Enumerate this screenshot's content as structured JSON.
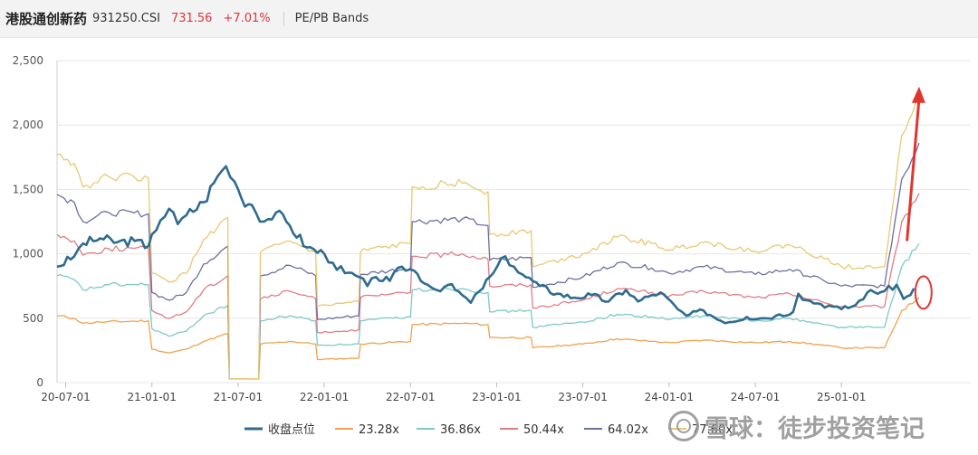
{
  "header": {
    "name": "港股通创新药",
    "code": "931250.CSI",
    "price": "731.56",
    "change": "+7.01%",
    "mode": "PE/PB Bands"
  },
  "watermark": {
    "text": "雪球：徒步投资笔记"
  },
  "chart_data": {
    "type": "line",
    "ylim": [
      0,
      2500
    ],
    "yticks": [
      0,
      500,
      1000,
      1500,
      2000,
      2500
    ],
    "ytick_labels": [
      "0",
      "500",
      "1,000",
      "1,500",
      "2,000",
      "2,500"
    ],
    "xlim": [
      2020.45,
      2025.75
    ],
    "xticks": [
      2020.5,
      2021.0,
      2021.5,
      2022.0,
      2022.5,
      2023.0,
      2023.5,
      2024.0,
      2024.5,
      2025.0
    ],
    "xtick_labels": [
      "20-07-01",
      "21-01-01",
      "21-07-01",
      "22-01-01",
      "22-07-01",
      "23-01-01",
      "23-07-01",
      "24-01-01",
      "24-07-01",
      "25-01-01"
    ],
    "grid": true,
    "legend": "bottom",
    "close_series": {
      "name": "收盘点位",
      "color": "#2e6b8e",
      "points": [
        [
          2020.45,
          900
        ],
        [
          2020.55,
          980
        ],
        [
          2020.6,
          1080
        ],
        [
          2020.7,
          1120
        ],
        [
          2020.8,
          1090
        ],
        [
          2020.9,
          1100
        ],
        [
          2020.98,
          1060
        ],
        [
          2021.0,
          1150
        ],
        [
          2021.05,
          1260
        ],
        [
          2021.1,
          1350
        ],
        [
          2021.15,
          1230
        ],
        [
          2021.2,
          1300
        ],
        [
          2021.3,
          1400
        ],
        [
          2021.38,
          1600
        ],
        [
          2021.43,
          1680
        ],
        [
          2021.48,
          1560
        ],
        [
          2021.52,
          1430
        ],
        [
          2021.58,
          1380
        ],
        [
          2021.65,
          1250
        ],
        [
          2021.72,
          1320
        ],
        [
          2021.8,
          1220
        ],
        [
          2021.9,
          1050
        ],
        [
          2022.0,
          1000
        ],
        [
          2022.05,
          930
        ],
        [
          2022.12,
          850
        ],
        [
          2022.2,
          820
        ],
        [
          2022.25,
          750
        ],
        [
          2022.3,
          820
        ],
        [
          2022.38,
          790
        ],
        [
          2022.45,
          900
        ],
        [
          2022.52,
          870
        ],
        [
          2022.6,
          760
        ],
        [
          2022.65,
          720
        ],
        [
          2022.72,
          760
        ],
        [
          2022.8,
          680
        ],
        [
          2022.85,
          620
        ],
        [
          2022.9,
          710
        ],
        [
          2022.98,
          850
        ],
        [
          2023.05,
          980
        ],
        [
          2023.1,
          900
        ],
        [
          2023.15,
          840
        ],
        [
          2023.25,
          750
        ],
        [
          2023.35,
          690
        ],
        [
          2023.45,
          660
        ],
        [
          2023.55,
          680
        ],
        [
          2023.65,
          630
        ],
        [
          2023.75,
          720
        ],
        [
          2023.82,
          630
        ],
        [
          2023.9,
          680
        ],
        [
          2023.95,
          700
        ],
        [
          2024.05,
          570
        ],
        [
          2024.1,
          520
        ],
        [
          2024.2,
          560
        ],
        [
          2024.3,
          480
        ],
        [
          2024.35,
          470
        ],
        [
          2024.45,
          510
        ],
        [
          2024.55,
          500
        ],
        [
          2024.62,
          520
        ],
        [
          2024.72,
          550
        ],
        [
          2024.75,
          690
        ],
        [
          2024.8,
          640
        ],
        [
          2024.88,
          610
        ],
        [
          2024.95,
          590
        ],
        [
          2025.0,
          570
        ],
        [
          2025.08,
          600
        ],
        [
          2025.15,
          700
        ],
        [
          2025.25,
          710
        ],
        [
          2025.32,
          760
        ],
        [
          2025.36,
          650
        ],
        [
          2025.4,
          680
        ],
        [
          2025.42,
          731.56
        ]
      ]
    },
    "bands": [
      {
        "name": "23.28x",
        "color": "#f0a24e",
        "points": [
          [
            2020.45,
            520
          ],
          [
            2020.55,
            500
          ],
          [
            2020.6,
            460
          ],
          [
            2020.7,
            470
          ],
          [
            2020.98,
            480
          ],
          [
            2021.0,
            260
          ],
          [
            2021.1,
            230
          ],
          [
            2021.2,
            260
          ],
          [
            2021.3,
            320
          ],
          [
            2021.44,
            380
          ],
          [
            2021.45,
            30
          ],
          [
            2021.62,
            30
          ],
          [
            2021.63,
            300
          ],
          [
            2021.8,
            320
          ],
          [
            2021.95,
            300
          ],
          [
            2021.96,
            180
          ],
          [
            2022.2,
            190
          ],
          [
            2022.21,
            300
          ],
          [
            2022.5,
            320
          ],
          [
            2022.51,
            450
          ],
          [
            2022.8,
            460
          ],
          [
            2022.95,
            450
          ],
          [
            2022.96,
            350
          ],
          [
            2023.2,
            350
          ],
          [
            2023.21,
            270
          ],
          [
            2023.5,
            300
          ],
          [
            2023.7,
            340
          ],
          [
            2023.9,
            320
          ],
          [
            2024.0,
            310
          ],
          [
            2024.2,
            330
          ],
          [
            2024.5,
            310
          ],
          [
            2024.7,
            320
          ],
          [
            2024.9,
            290
          ],
          [
            2025.0,
            270
          ],
          [
            2025.25,
            270
          ],
          [
            2025.35,
            560
          ],
          [
            2025.45,
            660
          ]
        ]
      },
      {
        "name": "36.86x",
        "color": "#7ec9c9",
        "points": [
          [
            2020.45,
            830
          ],
          [
            2020.55,
            800
          ],
          [
            2020.6,
            720
          ],
          [
            2020.75,
            760
          ],
          [
            2020.98,
            760
          ],
          [
            2021.0,
            420
          ],
          [
            2021.1,
            360
          ],
          [
            2021.2,
            400
          ],
          [
            2021.3,
            520
          ],
          [
            2021.44,
            600
          ],
          [
            2021.45,
            30
          ],
          [
            2021.62,
            30
          ],
          [
            2021.63,
            480
          ],
          [
            2021.8,
            520
          ],
          [
            2021.95,
            480
          ],
          [
            2021.96,
            290
          ],
          [
            2022.2,
            300
          ],
          [
            2022.21,
            480
          ],
          [
            2022.5,
            510
          ],
          [
            2022.51,
            720
          ],
          [
            2022.8,
            730
          ],
          [
            2022.95,
            700
          ],
          [
            2022.96,
            550
          ],
          [
            2023.2,
            560
          ],
          [
            2023.21,
            430
          ],
          [
            2023.5,
            470
          ],
          [
            2023.7,
            530
          ],
          [
            2023.9,
            510
          ],
          [
            2024.0,
            490
          ],
          [
            2024.2,
            520
          ],
          [
            2024.5,
            480
          ],
          [
            2024.7,
            500
          ],
          [
            2024.9,
            450
          ],
          [
            2025.0,
            430
          ],
          [
            2025.25,
            430
          ],
          [
            2025.35,
            900
          ],
          [
            2025.45,
            1080
          ]
        ]
      },
      {
        "name": "50.44x",
        "color": "#e07d85",
        "points": [
          [
            2020.45,
            1150
          ],
          [
            2020.55,
            1100
          ],
          [
            2020.6,
            990
          ],
          [
            2020.75,
            1040
          ],
          [
            2020.98,
            1040
          ],
          [
            2021.0,
            560
          ],
          [
            2021.1,
            500
          ],
          [
            2021.2,
            550
          ],
          [
            2021.3,
            720
          ],
          [
            2021.44,
            830
          ],
          [
            2021.45,
            30
          ],
          [
            2021.62,
            30
          ],
          [
            2021.63,
            650
          ],
          [
            2021.8,
            710
          ],
          [
            2021.95,
            650
          ],
          [
            2021.96,
            390
          ],
          [
            2022.2,
            410
          ],
          [
            2022.21,
            660
          ],
          [
            2022.5,
            700
          ],
          [
            2022.51,
            980
          ],
          [
            2022.8,
            1000
          ],
          [
            2022.95,
            960
          ],
          [
            2022.96,
            750
          ],
          [
            2023.2,
            760
          ],
          [
            2023.21,
            580
          ],
          [
            2023.5,
            640
          ],
          [
            2023.7,
            730
          ],
          [
            2023.9,
            700
          ],
          [
            2024.0,
            670
          ],
          [
            2024.2,
            710
          ],
          [
            2024.5,
            660
          ],
          [
            2024.7,
            690
          ],
          [
            2024.9,
            620
          ],
          [
            2025.0,
            590
          ],
          [
            2025.25,
            590
          ],
          [
            2025.35,
            1250
          ],
          [
            2025.45,
            1470
          ]
        ]
      },
      {
        "name": "64.02x",
        "color": "#6a6fa0",
        "points": [
          [
            2020.45,
            1460
          ],
          [
            2020.55,
            1400
          ],
          [
            2020.6,
            1250
          ],
          [
            2020.75,
            1320
          ],
          [
            2020.98,
            1310
          ],
          [
            2021.0,
            700
          ],
          [
            2021.1,
            640
          ],
          [
            2021.2,
            700
          ],
          [
            2021.3,
            920
          ],
          [
            2021.44,
            1060
          ],
          [
            2021.45,
            30
          ],
          [
            2021.62,
            30
          ],
          [
            2021.63,
            830
          ],
          [
            2021.8,
            910
          ],
          [
            2021.95,
            830
          ],
          [
            2021.96,
            490
          ],
          [
            2022.2,
            520
          ],
          [
            2022.21,
            840
          ],
          [
            2022.5,
            890
          ],
          [
            2022.51,
            1250
          ],
          [
            2022.8,
            1270
          ],
          [
            2022.95,
            1220
          ],
          [
            2022.96,
            950
          ],
          [
            2023.2,
            970
          ],
          [
            2023.21,
            740
          ],
          [
            2023.5,
            820
          ],
          [
            2023.7,
            930
          ],
          [
            2023.9,
            890
          ],
          [
            2024.0,
            850
          ],
          [
            2024.2,
            900
          ],
          [
            2024.5,
            840
          ],
          [
            2024.7,
            880
          ],
          [
            2024.9,
            790
          ],
          [
            2025.0,
            750
          ],
          [
            2025.25,
            750
          ],
          [
            2025.35,
            1580
          ],
          [
            2025.45,
            1860
          ]
        ]
      },
      {
        "name": "77.60x",
        "color": "#e8c872",
        "points": [
          [
            2020.45,
            1770
          ],
          [
            2020.55,
            1700
          ],
          [
            2020.6,
            1520
          ],
          [
            2020.75,
            1600
          ],
          [
            2020.98,
            1590
          ],
          [
            2021.0,
            850
          ],
          [
            2021.1,
            780
          ],
          [
            2021.2,
            850
          ],
          [
            2021.3,
            1110
          ],
          [
            2021.44,
            1280
          ],
          [
            2021.45,
            30
          ],
          [
            2021.62,
            30
          ],
          [
            2021.63,
            1010
          ],
          [
            2021.8,
            1100
          ],
          [
            2021.95,
            1010
          ],
          [
            2021.96,
            590
          ],
          [
            2022.2,
            630
          ],
          [
            2022.21,
            1020
          ],
          [
            2022.5,
            1080
          ],
          [
            2022.51,
            1520
          ],
          [
            2022.8,
            1550
          ],
          [
            2022.95,
            1480
          ],
          [
            2022.96,
            1150
          ],
          [
            2023.2,
            1180
          ],
          [
            2023.21,
            900
          ],
          [
            2023.5,
            1000
          ],
          [
            2023.7,
            1130
          ],
          [
            2023.9,
            1080
          ],
          [
            2024.0,
            1030
          ],
          [
            2024.2,
            1090
          ],
          [
            2024.5,
            1020
          ],
          [
            2024.7,
            1070
          ],
          [
            2024.9,
            960
          ],
          [
            2025.0,
            900
          ],
          [
            2025.25,
            900
          ],
          [
            2025.35,
            1920
          ],
          [
            2025.45,
            2260
          ]
        ]
      }
    ],
    "annotations": {
      "arrow": {
        "color": "#e0362e",
        "from": [
          2025.38,
          1100
        ],
        "to": [
          2025.45,
          2270
        ]
      },
      "circle": {
        "color": "#e0362e",
        "center": [
          2025.46,
          700
        ]
      }
    }
  }
}
